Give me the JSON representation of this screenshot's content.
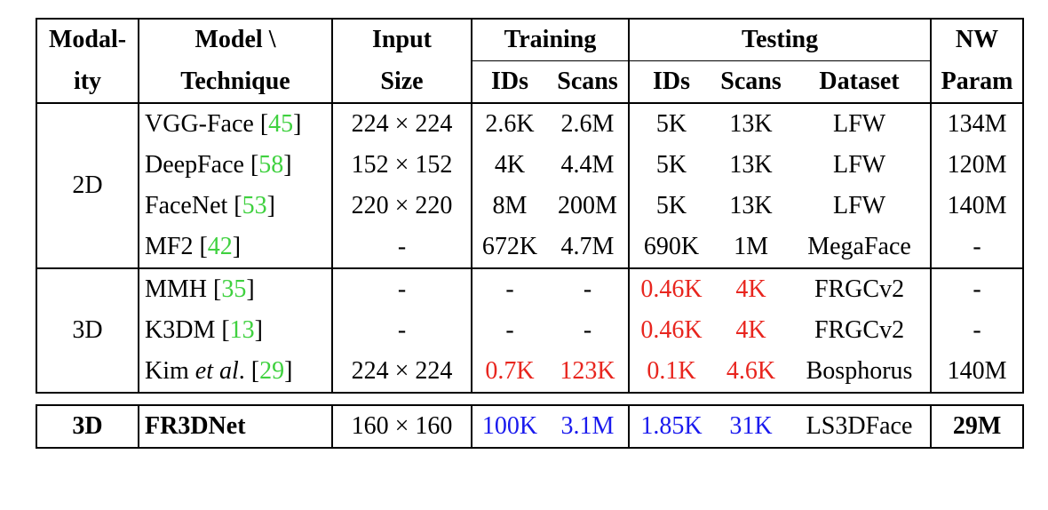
{
  "header": {
    "modality": [
      "Modal-",
      "ity"
    ],
    "model": [
      "Model \\",
      "Technique"
    ],
    "input": [
      "Input",
      "Size"
    ],
    "training": "Training",
    "testing": "Testing",
    "nw": [
      "NW",
      "Param"
    ],
    "sub": {
      "ids": "IDs",
      "scans": "Scans",
      "dataset": "Dataset"
    }
  },
  "groups": [
    {
      "modality": "2D",
      "rows": [
        {
          "model": "VGG-Face",
          "ref": "45",
          "input": "224 × 224",
          "tr_ids": "2.6K",
          "tr_scans": "2.6M",
          "te_ids": "5K",
          "te_scans": "13K",
          "dataset": "LFW",
          "nw": "134M"
        },
        {
          "model": "DeepFace",
          "ref": "58",
          "input": "152 × 152",
          "tr_ids": "4K",
          "tr_scans": "4.4M",
          "te_ids": "5K",
          "te_scans": "13K",
          "dataset": "LFW",
          "nw": "120M"
        },
        {
          "model": "FaceNet",
          "ref": "53",
          "input": "220 × 220",
          "tr_ids": "8M",
          "tr_scans": "200M",
          "te_ids": "5K",
          "te_scans": "13K",
          "dataset": "LFW",
          "nw": "140M"
        },
        {
          "model": "MF2",
          "ref": "42",
          "input": "-",
          "tr_ids": "672K",
          "tr_scans": "4.7M",
          "te_ids": "690K",
          "te_scans": "1M",
          "dataset": "MegaFace",
          "nw": "-"
        }
      ]
    },
    {
      "modality": "3D",
      "rows": [
        {
          "model": "MMH",
          "ref": "35",
          "input": "-",
          "tr_ids": "-",
          "tr_scans": "-",
          "te_ids": "0.46K",
          "te_scans": "4K",
          "dataset": "FRGCv2",
          "nw": "-"
        },
        {
          "model": "K3DM",
          "ref": "13",
          "input": "-",
          "tr_ids": "-",
          "tr_scans": "-",
          "te_ids": "0.46K",
          "te_scans": "4K",
          "dataset": "FRGCv2",
          "nw": "-"
        },
        {
          "model": "Kim",
          "model_em": "et al",
          "model_tail": ".",
          "ref": "29",
          "input": "224 × 224",
          "tr_ids": "0.7K",
          "tr_scans": "123K",
          "te_ids": "0.1K",
          "te_scans": "4.6K",
          "dataset": "Bosphorus",
          "nw": "140M"
        }
      ]
    }
  ],
  "ours": {
    "modality": "3D",
    "model": "FR3DNet",
    "input": "160 × 160",
    "tr_ids": "100K",
    "tr_scans": "3.1M",
    "te_ids": "1.85K",
    "te_scans": "31K",
    "dataset": "LS3DFace",
    "nw": "29M"
  },
  "colors": {
    "red": "#e8251e",
    "blue": "#1a1aee",
    "green": "#3fd13f"
  }
}
